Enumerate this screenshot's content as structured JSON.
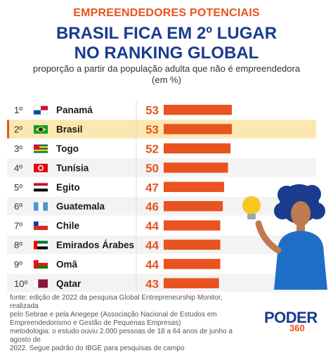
{
  "header": {
    "kicker": "EMPREENDEDORES POTENCIAIS",
    "title_line1": "BRASIL FICA EM 2º LUGAR",
    "title_line2": "NO RANKING GLOBAL",
    "subtitle_line1": "proporção a partir da população adulta que não é empreendedora",
    "subtitle_line2": "(em %)"
  },
  "colors": {
    "accent": "#e8531f",
    "brand": "#1a3b8e",
    "highlight_row": "#fbe8b0",
    "row_alt": "#f3f3f3"
  },
  "chart_data": {
    "type": "bar",
    "orientation": "horizontal",
    "highlight_category": "Brasil",
    "ranks": [
      "1º",
      "2º",
      "3º",
      "4º",
      "5º",
      "6º",
      "7º",
      "8º",
      "9º",
      "10º"
    ],
    "categories": [
      "Panamá",
      "Brasil",
      "Togo",
      "Tunísia",
      "Egito",
      "Guatemala",
      "Chile",
      "Emirados Árabes",
      "Omã",
      "Qatar"
    ],
    "flag_icons": [
      "panama-flag-icon",
      "brazil-flag-icon",
      "togo-flag-icon",
      "tunisia-flag-icon",
      "egypt-flag-icon",
      "guatemala-flag-icon",
      "chile-flag-icon",
      "uae-flag-icon",
      "oman-flag-icon",
      "qatar-flag-icon"
    ],
    "values": [
      53,
      53,
      52,
      50,
      47,
      46,
      44,
      44,
      44,
      43
    ],
    "value_labels": [
      "53",
      "53",
      "52",
      "50",
      "47",
      "46",
      "44",
      "44",
      "44",
      "43"
    ],
    "xlim": [
      0,
      60
    ],
    "grid": false,
    "legend": "none"
  },
  "footer": {
    "source_lines": [
      "fonte: edição de 2022 da pesquisa Global Entrepreneurship Monitor, realizada",
      "pelo Sebrae e pela Anegepe (Associação Nacional de Estudos em",
      "Empreendedorismo e Gestão de Pequenas Empresas)",
      "metodologia: o estudo ouviu 2.000 pessoas de 18 a 64 anos de junho a agosto de",
      "2022. Segue padrão do IBGE para pesquisas de campo"
    ],
    "logo_word": "PODER",
    "logo_number": "360"
  }
}
